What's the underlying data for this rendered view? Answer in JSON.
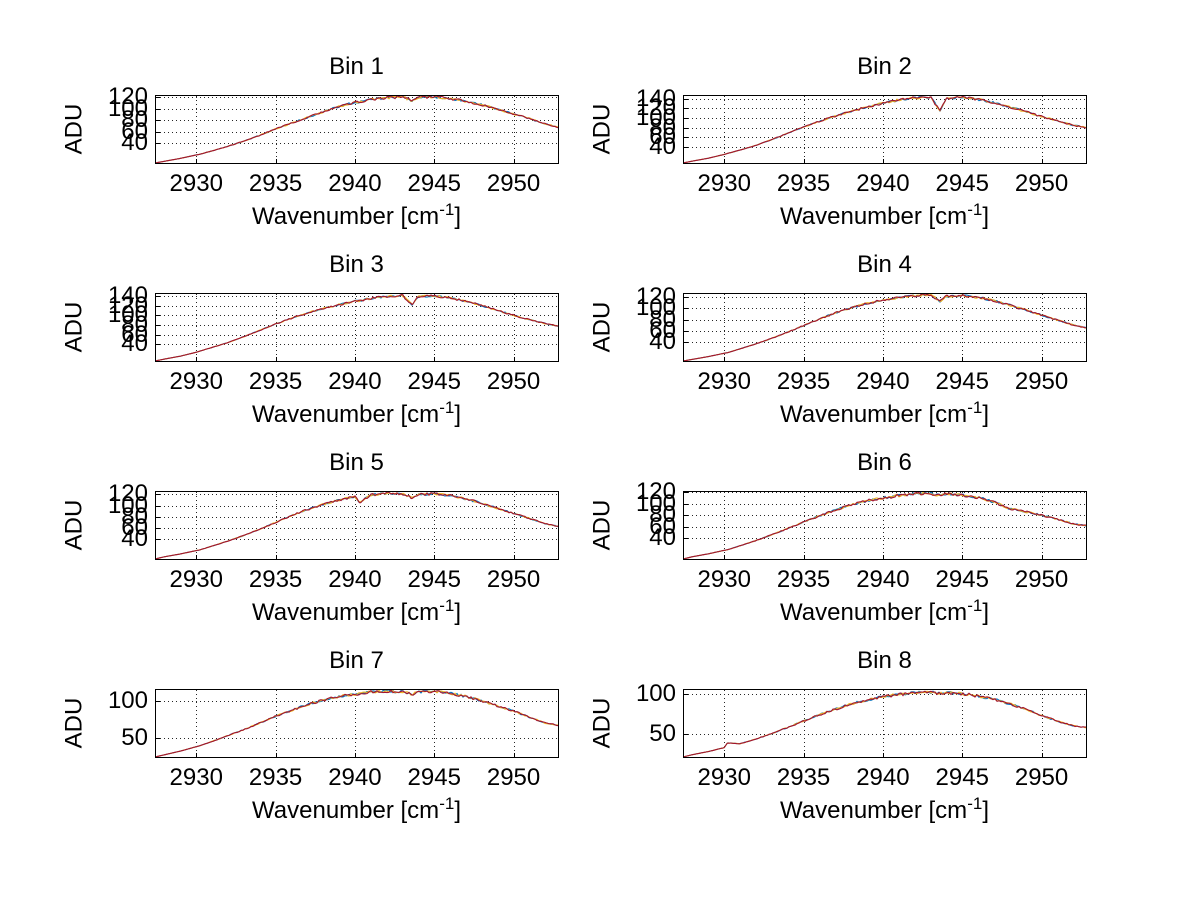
{
  "figure": {
    "background": "#ffffff",
    "axis_color": "#000000",
    "grid_color": "#262626",
    "series_colors": [
      "#0072BD",
      "#EDB120",
      "#A2142F"
    ],
    "labels": {
      "ylabel": "ADU",
      "xlabel_pre": "Wavenumber [cm",
      "xlabel_sup": "-1",
      "xlabel_post": "]"
    }
  },
  "chart_data": [
    {
      "type": "line",
      "title": "Bin 1",
      "xlabel": "Wavenumber [cm^-1]",
      "ylabel": "ADU",
      "xlim": [
        2927.4,
        2952.8
      ],
      "ylim": [
        6,
        124
      ],
      "xticks": [
        2930,
        2935,
        2940,
        2945,
        2950
      ],
      "yticks": [
        40,
        60,
        80,
        100,
        120
      ],
      "grid": true,
      "seed": 11,
      "noise_amp": 2.5,
      "x": [
        2927.4,
        2928,
        2929,
        2930,
        2930.2,
        2931,
        2932,
        2933,
        2934,
        2935,
        2936,
        2937,
        2938,
        2939,
        2940,
        2940.3,
        2941,
        2942,
        2943,
        2943.6,
        2944,
        2945,
        2946,
        2947,
        2948,
        2949,
        2950,
        2951,
        2952,
        2952.8
      ],
      "y": [
        6,
        9,
        14,
        20,
        21,
        27,
        35,
        44,
        54,
        65,
        75,
        85,
        95,
        104,
        111,
        112,
        116,
        119,
        121,
        114,
        120,
        121,
        118,
        113,
        107,
        99,
        91,
        83,
        74,
        68
      ]
    },
    {
      "type": "line",
      "title": "Bin 2",
      "xlabel": "Wavenumber [cm^-1]",
      "ylabel": "ADU",
      "xlim": [
        2927.4,
        2952.8
      ],
      "ylim": [
        6,
        148
      ],
      "xticks": [
        2930,
        2935,
        2940,
        2945,
        2950
      ],
      "yticks": [
        40,
        60,
        80,
        100,
        120,
        140
      ],
      "grid": true,
      "seed": 22,
      "noise_amp": 3,
      "x": [
        2927.4,
        2928,
        2929,
        2930,
        2930.2,
        2931,
        2932,
        2933,
        2934,
        2935,
        2936,
        2937,
        2938,
        2939,
        2940,
        2940.3,
        2941,
        2942,
        2943,
        2943.6,
        2944,
        2945,
        2946,
        2947,
        2948,
        2949,
        2950,
        2951,
        2952,
        2952.8
      ],
      "y": [
        6,
        10,
        16,
        24,
        26,
        33,
        43,
        55,
        68,
        81,
        93,
        104,
        114,
        123,
        131,
        133,
        138,
        142,
        144,
        115,
        141,
        143,
        139,
        132,
        123,
        113,
        103,
        94,
        85,
        80
      ]
    },
    {
      "type": "line",
      "title": "Bin 3",
      "xlabel": "Wavenumber [cm^-1]",
      "ylabel": "ADU",
      "xlim": [
        2927.4,
        2952.8
      ],
      "ylim": [
        6,
        146
      ],
      "xticks": [
        2930,
        2935,
        2940,
        2945,
        2950
      ],
      "yticks": [
        40,
        60,
        80,
        100,
        120,
        140
      ],
      "grid": true,
      "seed": 33,
      "noise_amp": 2.5,
      "x": [
        2927.4,
        2928,
        2929,
        2930,
        2930.2,
        2931,
        2932,
        2933,
        2934,
        2935,
        2936,
        2937,
        2938,
        2939,
        2940,
        2940.3,
        2941,
        2942,
        2943,
        2943.6,
        2944,
        2945,
        2946,
        2947,
        2948,
        2949,
        2950,
        2951,
        2952,
        2952.8
      ],
      "y": [
        6,
        10,
        16,
        24,
        26,
        34,
        44,
        56,
        69,
        82,
        94,
        105,
        114,
        122,
        129,
        130,
        135,
        139,
        141,
        122,
        139,
        140,
        136,
        129,
        120,
        110,
        100,
        91,
        83,
        78
      ]
    },
    {
      "type": "line",
      "title": "Bin 4",
      "xlabel": "Wavenumber [cm^-1]",
      "ylabel": "ADU",
      "xlim": [
        2927.4,
        2952.8
      ],
      "ylim": [
        5,
        128
      ],
      "xticks": [
        2930,
        2935,
        2940,
        2945,
        2950
      ],
      "yticks": [
        40,
        60,
        80,
        100,
        120
      ],
      "grid": true,
      "seed": 44,
      "noise_amp": 2.5,
      "x": [
        2927.4,
        2928,
        2929,
        2930,
        2930.2,
        2931,
        2932,
        2933,
        2934,
        2935,
        2936,
        2937,
        2938,
        2939,
        2940,
        2940.3,
        2941,
        2942,
        2943,
        2943.6,
        2944,
        2945,
        2946,
        2947,
        2948,
        2949,
        2950,
        2951,
        2952,
        2952.8
      ],
      "y": [
        5,
        8,
        13,
        19,
        20,
        27,
        36,
        46,
        57,
        69,
        81,
        92,
        101,
        109,
        115,
        116,
        120,
        123,
        125,
        113,
        122,
        123,
        120,
        114,
        106,
        97,
        88,
        79,
        70,
        65
      ]
    },
    {
      "type": "line",
      "title": "Bin 5",
      "xlabel": "Wavenumber [cm^-1]",
      "ylabel": "ADU",
      "xlim": [
        2927.4,
        2952.8
      ],
      "ylim": [
        5,
        126
      ],
      "xticks": [
        2930,
        2935,
        2940,
        2945,
        2950
      ],
      "yticks": [
        40,
        60,
        80,
        100,
        120
      ],
      "grid": true,
      "seed": 55,
      "noise_amp": 2.5,
      "x": [
        2927.4,
        2928,
        2929,
        2930,
        2930.2,
        2931,
        2932,
        2933,
        2934,
        2935,
        2936,
        2937,
        2938,
        2939,
        2940,
        2940.3,
        2941,
        2942,
        2943,
        2943.6,
        2944,
        2945,
        2946,
        2947,
        2948,
        2949,
        2950,
        2951,
        2952,
        2952.8
      ],
      "y": [
        5,
        9,
        14,
        20,
        21,
        28,
        37,
        47,
        58,
        70,
        82,
        93,
        102,
        110,
        116,
        106,
        119,
        122,
        121,
        114,
        120,
        121,
        118,
        112,
        104,
        95,
        86,
        77,
        68,
        63
      ]
    },
    {
      "type": "line",
      "title": "Bin 6",
      "xlabel": "Wavenumber [cm^-1]",
      "ylabel": "ADU",
      "xlim": [
        2927.4,
        2952.8
      ],
      "ylim": [
        4,
        122
      ],
      "xticks": [
        2930,
        2935,
        2940,
        2945,
        2950
      ],
      "yticks": [
        40,
        60,
        80,
        100,
        120
      ],
      "grid": true,
      "seed": 66,
      "noise_amp": 2.8,
      "x": [
        2927.4,
        2928,
        2929,
        2930,
        2930.2,
        2931,
        2932,
        2933,
        2934,
        2935,
        2936,
        2937,
        2938,
        2939,
        2940,
        2940.3,
        2941,
        2942,
        2943,
        2943.6,
        2944,
        2945,
        2946,
        2947,
        2948,
        2949,
        2950,
        2951,
        2952,
        2952.8
      ],
      "y": [
        4,
        8,
        13,
        19,
        20,
        27,
        36,
        46,
        57,
        68,
        79,
        89,
        98,
        105,
        110,
        111,
        114,
        117,
        118,
        114,
        117,
        115,
        111,
        103,
        91,
        86,
        80,
        73,
        65,
        62
      ]
    },
    {
      "type": "line",
      "title": "Bin 7",
      "xlabel": "Wavenumber [cm^-1]",
      "ylabel": "ADU",
      "xlim": [
        2927.4,
        2952.8
      ],
      "ylim": [
        24,
        116
      ],
      "xticks": [
        2930,
        2935,
        2940,
        2945,
        2950
      ],
      "yticks": [
        50,
        100
      ],
      "grid": true,
      "seed": 77,
      "noise_amp": 2.2,
      "x": [
        2927.4,
        2928,
        2929,
        2930,
        2930.2,
        2931,
        2932,
        2933,
        2934,
        2935,
        2936,
        2937,
        2938,
        2939,
        2940,
        2940.3,
        2941,
        2942,
        2943,
        2943.6,
        2944,
        2945,
        2946,
        2947,
        2948,
        2949,
        2950,
        2951,
        2952,
        2952.8
      ],
      "y": [
        24,
        27,
        32,
        38,
        39,
        45,
        53,
        61,
        70,
        79,
        87,
        95,
        101,
        106,
        109,
        110,
        112,
        113,
        112,
        109,
        112,
        113,
        110,
        106,
        100,
        93,
        86,
        78,
        70,
        67
      ]
    },
    {
      "type": "line",
      "title": "Bin 8",
      "xlabel": "Wavenumber [cm^-1]",
      "ylabel": "ADU",
      "xlim": [
        2927.4,
        2952.8
      ],
      "ylim": [
        20,
        107
      ],
      "xticks": [
        2930,
        2935,
        2940,
        2945,
        2950
      ],
      "yticks": [
        50,
        100
      ],
      "grid": true,
      "seed": 88,
      "noise_amp": 2.2,
      "x": [
        2927.4,
        2928,
        2929,
        2930,
        2930.2,
        2931,
        2932,
        2933,
        2934,
        2935,
        2936,
        2937,
        2938,
        2939,
        2940,
        2940.3,
        2941,
        2942,
        2943,
        2943.6,
        2944,
        2945,
        2946,
        2947,
        2948,
        2949,
        2950,
        2951,
        2952,
        2952.8
      ],
      "y": [
        20,
        23,
        27,
        32,
        38,
        37,
        43,
        50,
        58,
        66,
        74,
        81,
        88,
        93,
        97,
        98,
        100,
        102,
        103,
        101,
        102,
        101,
        98,
        94,
        88,
        81,
        73,
        66,
        60,
        58
      ]
    }
  ]
}
